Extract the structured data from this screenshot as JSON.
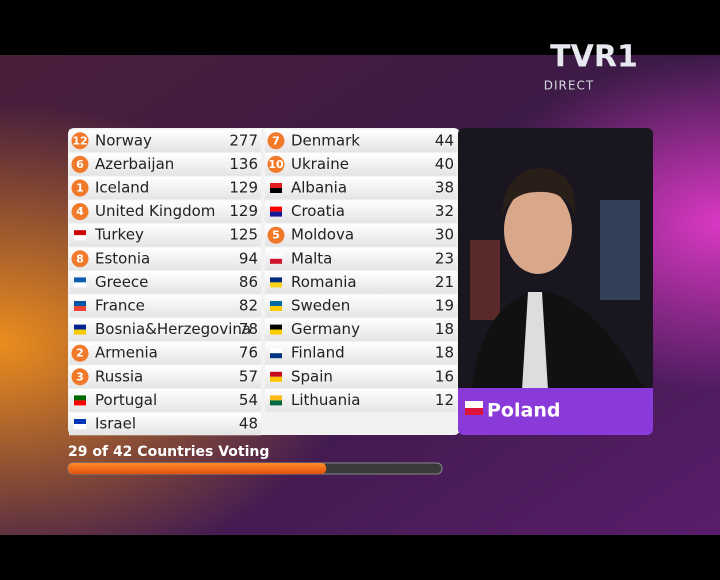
{
  "channel": {
    "logo": "TVR1",
    "status": "DIRECT"
  },
  "scoreboard": {
    "left": [
      {
        "points": "12",
        "country": "Norway",
        "score": 277
      },
      {
        "points": "6",
        "country": "Azerbaijan",
        "score": 136
      },
      {
        "points": "1",
        "country": "Iceland",
        "score": 129
      },
      {
        "points": "4",
        "country": "United Kingdom",
        "score": 129
      },
      {
        "country": "Turkey",
        "score": 125
      },
      {
        "points": "8",
        "country": "Estonia",
        "score": 94
      },
      {
        "country": "Greece",
        "score": 86
      },
      {
        "country": "France",
        "score": 82
      },
      {
        "country": "Bosnia&Herzegovina",
        "score": 78
      },
      {
        "points": "2",
        "country": "Armenia",
        "score": 76
      },
      {
        "points": "3",
        "country": "Russia",
        "score": 57
      },
      {
        "country": "Portugal",
        "score": 54
      },
      {
        "country": "Israel",
        "score": 48
      }
    ],
    "right": [
      {
        "points": "7",
        "country": "Denmark",
        "score": 44
      },
      {
        "points": "10",
        "country": "Ukraine",
        "score": 40
      },
      {
        "country": "Albania",
        "score": 38
      },
      {
        "country": "Croatia",
        "score": 32
      },
      {
        "points": "5",
        "country": "Moldova",
        "score": 30
      },
      {
        "country": "Malta",
        "score": 23
      },
      {
        "country": "Romania",
        "score": 21
      },
      {
        "country": "Sweden",
        "score": 19
      },
      {
        "country": "Germany",
        "score": 18
      },
      {
        "country": "Finland",
        "score": 18
      },
      {
        "country": "Spain",
        "score": 16
      },
      {
        "country": "Lithuania",
        "score": 12
      }
    ]
  },
  "voting_country": "Poland",
  "progress": {
    "label": "29 of 42 Countries Voting",
    "voted": 29,
    "total": 42
  }
}
